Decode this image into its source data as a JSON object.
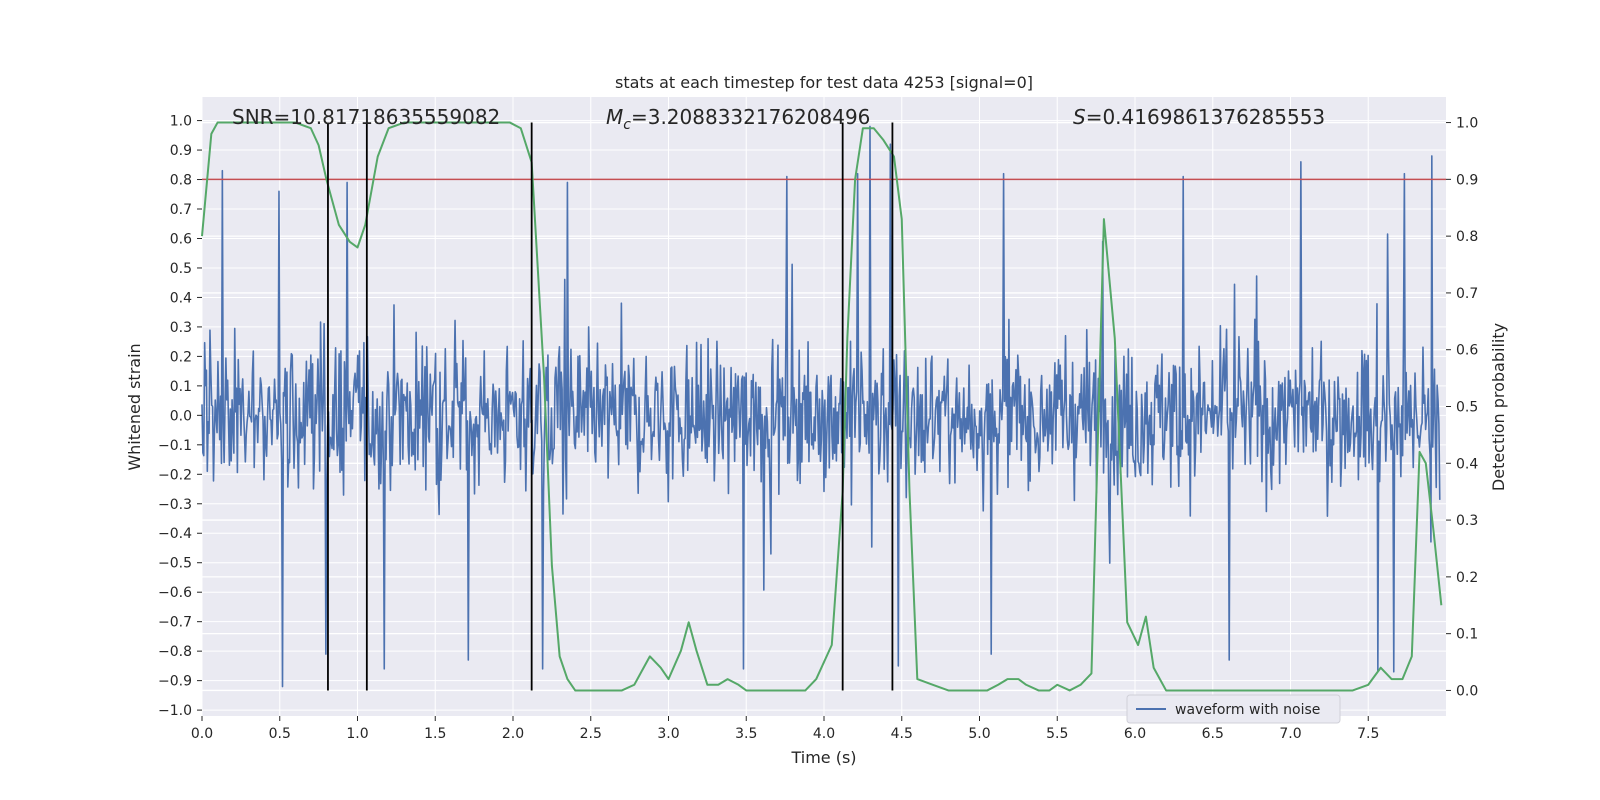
{
  "chart_data": {
    "type": "line",
    "title": "stats at each timestep for test data 4253 [signal=0]",
    "xlabel": "Time (s)",
    "ylabel_left": "Whitened strain",
    "ylabel_right": "Detection probability",
    "xlim": [
      0,
      8
    ],
    "ylim_left": [
      -1.02,
      1.08
    ],
    "ylim_right": [
      -0.045,
      1.045
    ],
    "x_ticks": [
      0.0,
      0.5,
      1.0,
      1.5,
      2.0,
      2.5,
      3.0,
      3.5,
      4.0,
      4.5,
      5.0,
      5.5,
      6.0,
      6.5,
      7.0,
      7.5
    ],
    "x_tick_labels": [
      "0.0",
      "0.5",
      "1.0",
      "1.5",
      "2.0",
      "2.5",
      "3.0",
      "3.5",
      "4.0",
      "4.5",
      "5.0",
      "5.5",
      "6.0",
      "6.5",
      "7.0",
      "7.5"
    ],
    "y_left_ticks": [
      -1.0,
      -0.9,
      -0.8,
      -0.7,
      -0.6,
      -0.5,
      -0.4,
      -0.3,
      -0.2,
      -0.1,
      0.0,
      0.1,
      0.2,
      0.3,
      0.4,
      0.5,
      0.6,
      0.7,
      0.8,
      0.9,
      1.0
    ],
    "y_left_tick_labels": [
      "−1.0",
      "−0.9",
      "−0.8",
      "−0.7",
      "−0.6",
      "−0.5",
      "−0.4",
      "−0.3",
      "−0.2",
      "−0.1",
      "0.0",
      "0.1",
      "0.2",
      "0.3",
      "0.4",
      "0.5",
      "0.6",
      "0.7",
      "0.8",
      "0.9",
      "1.0"
    ],
    "y_right_ticks": [
      0.0,
      0.1,
      0.2,
      0.3,
      0.4,
      0.5,
      0.6,
      0.7,
      0.8,
      0.9,
      1.0
    ],
    "y_right_tick_labels": [
      "0.0",
      "0.1",
      "0.2",
      "0.3",
      "0.4",
      "0.5",
      "0.6",
      "0.7",
      "0.8",
      "0.9",
      "1.0"
    ],
    "annotations": {
      "snr": "SNR=10.81718635559082",
      "mc_prefix": "M",
      "mc_sub": "c",
      "mc_value": "=3.2088332176208496",
      "s_prefix": "S",
      "s_value": "=0.4169861376285553"
    },
    "legend": {
      "label": "waveform with noise",
      "placement": "lower-right"
    },
    "colors": {
      "waveform": "#4c72b0",
      "probability": "#55a868",
      "threshold": "#c44e52",
      "markers": "#000000",
      "plot_bg": "#eaeaf2",
      "grid": "#ffffff"
    },
    "threshold_probability": 0.9,
    "segment_markers_s": [
      0.81,
      1.06,
      2.12,
      4.12,
      4.44
    ],
    "waveform_envelope": {
      "description_values": "approximate whitened-strain noise: dense band within about ±0.35 with spikes",
      "sample_count": 1400,
      "spikes_up": [
        [
          0.13,
          0.83
        ],
        [
          0.5,
          0.76
        ],
        [
          0.94,
          0.79
        ],
        [
          2.36,
          0.79
        ],
        [
          3.78,
          0.81
        ],
        [
          4.24,
          0.82
        ],
        [
          4.32,
          0.98
        ],
        [
          4.45,
          0.92
        ],
        [
          5.18,
          0.82
        ],
        [
          5.82,
          0.59
        ],
        [
          6.34,
          0.81
        ],
        [
          7.1,
          0.86
        ],
        [
          7.77,
          0.82
        ],
        [
          7.95,
          0.88
        ]
      ],
      "spikes_down": [
        [
          0.52,
          -0.92
        ],
        [
          0.8,
          -0.81
        ],
        [
          1.18,
          -0.86
        ],
        [
          1.72,
          -0.83
        ],
        [
          2.2,
          -0.86
        ],
        [
          3.5,
          -0.86
        ],
        [
          4.5,
          -0.85
        ],
        [
          5.1,
          -0.81
        ],
        [
          6.64,
          -0.83
        ],
        [
          7.6,
          -0.87
        ],
        [
          7.7,
          -0.87
        ]
      ]
    },
    "series": [
      {
        "name": "",
        "axis": "right",
        "x": [
          0.0,
          0.06,
          0.1,
          0.2,
          0.3,
          0.4,
          0.5,
          0.6,
          0.7,
          0.75,
          0.8,
          0.88,
          0.95,
          1.0,
          1.05,
          1.13,
          1.2,
          1.3,
          1.4,
          1.5,
          1.6,
          1.7,
          1.8,
          1.9,
          1.98,
          2.05,
          2.12,
          2.2,
          2.25,
          2.3,
          2.35,
          2.4,
          2.45,
          2.5,
          2.6,
          2.7,
          2.78,
          2.82,
          2.88,
          2.95,
          3.0,
          3.08,
          3.13,
          3.18,
          3.25,
          3.32,
          3.38,
          3.45,
          3.5,
          3.6,
          3.7,
          3.8,
          3.88,
          3.95,
          4.05,
          4.12,
          4.15,
          4.2,
          4.25,
          4.32,
          4.38,
          4.45,
          4.5,
          4.55,
          4.6,
          4.7,
          4.8,
          4.9,
          5.0,
          5.05,
          5.12,
          5.18,
          5.25,
          5.3,
          5.38,
          5.45,
          5.5,
          5.58,
          5.65,
          5.72,
          5.8,
          5.87,
          5.95,
          6.02,
          6.07,
          6.12,
          6.2,
          6.3,
          6.5,
          6.7,
          6.8,
          6.9,
          7.0,
          7.1,
          7.2,
          7.3,
          7.4,
          7.5,
          7.58,
          7.65,
          7.72,
          7.78,
          7.83,
          7.87,
          7.92,
          7.97
        ],
        "values": [
          0.8,
          0.98,
          1.0,
          1.0,
          1.0,
          1.0,
          1.0,
          1.0,
          0.99,
          0.96,
          0.9,
          0.82,
          0.79,
          0.78,
          0.82,
          0.94,
          0.99,
          1.0,
          1.0,
          1.0,
          1.0,
          1.0,
          1.0,
          1.0,
          1.0,
          0.99,
          0.93,
          0.55,
          0.22,
          0.06,
          0.02,
          0.0,
          0.0,
          0.0,
          0.0,
          0.0,
          0.01,
          0.03,
          0.06,
          0.04,
          0.02,
          0.07,
          0.12,
          0.07,
          0.01,
          0.01,
          0.02,
          0.01,
          0.0,
          0.0,
          0.0,
          0.0,
          0.0,
          0.02,
          0.08,
          0.35,
          0.62,
          0.9,
          0.99,
          0.99,
          0.97,
          0.94,
          0.83,
          0.35,
          0.02,
          0.01,
          0.0,
          0.0,
          0.0,
          0.0,
          0.01,
          0.02,
          0.02,
          0.01,
          0.0,
          0.0,
          0.01,
          0.0,
          0.01,
          0.03,
          0.83,
          0.62,
          0.12,
          0.08,
          0.13,
          0.04,
          0.0,
          0.0,
          0.0,
          0.0,
          0.0,
          0.0,
          0.0,
          0.0,
          0.0,
          0.0,
          0.0,
          0.01,
          0.04,
          0.02,
          0.02,
          0.06,
          0.42,
          0.4,
          0.28,
          0.15
        ]
      }
    ]
  }
}
